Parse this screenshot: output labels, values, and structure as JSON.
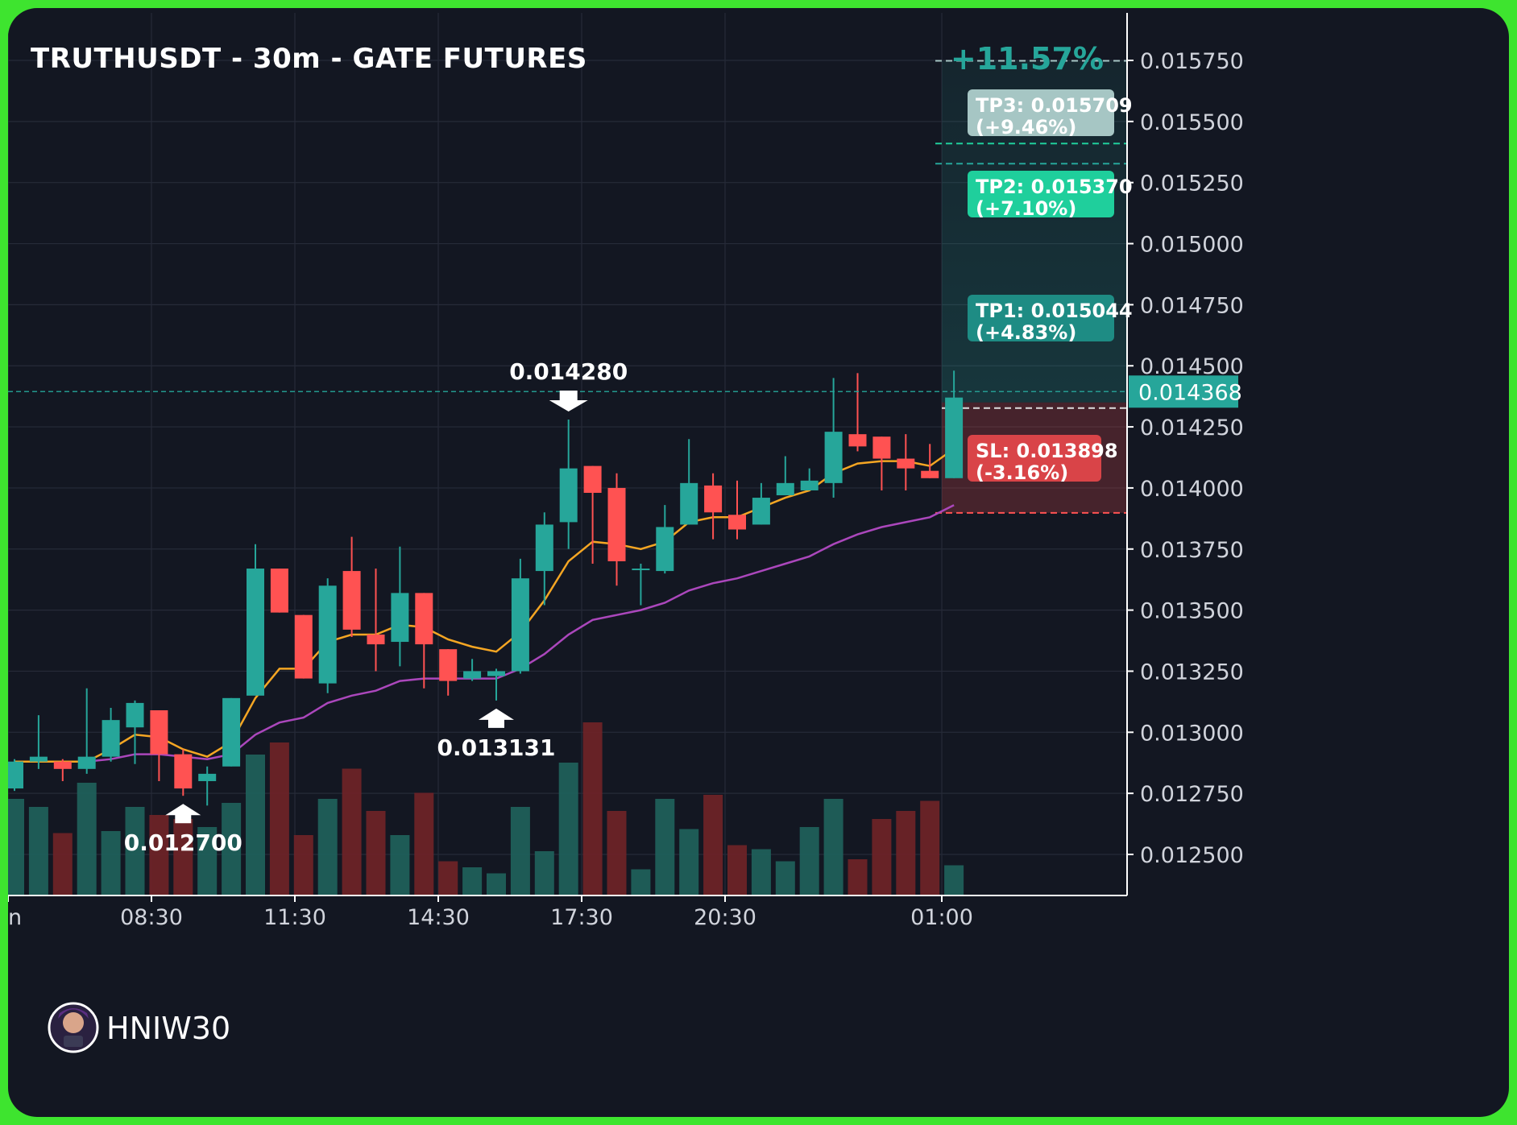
{
  "colors": {
    "background": "#131722",
    "frame": "#3ee42f",
    "up": "#26a69a",
    "down": "#ff5252",
    "ema_fast": "#f5a623",
    "ema_slow": "#ab47bc",
    "tp1_box": "#1e8c84",
    "tp2_box": "#1fcf9c",
    "tp3_box": "#a6c6c4",
    "sl_box": "#d94448"
  },
  "chart_data": {
    "type": "candlestick",
    "title": "TRUTHUSDT - 30m - GATE FUTURES",
    "performance_label": "+11.57%",
    "y_ticks": [
      "0.015750",
      "0.015500",
      "0.015250",
      "0.015000",
      "0.014750",
      "0.014500",
      "0.014250",
      "0.014000",
      "0.013750",
      "0.013500",
      "0.013250",
      "0.013000",
      "0.012750",
      "0.012500"
    ],
    "y_tick_values": [
      0.01575,
      0.0155,
      0.01525,
      0.015,
      0.01475,
      0.0145,
      0.01425,
      0.014,
      0.01375,
      0.0135,
      0.01325,
      0.013,
      0.01275,
      0.0125
    ],
    "x_ticks": [
      "n",
      "08:30",
      "11:30",
      "14:30",
      "17:30",
      "20:30",
      "01:00"
    ],
    "current_price": "0.014368",
    "candles": [
      {
        "o": 0.01277,
        "h": 0.01289,
        "l": 0.01276,
        "c": 0.01288
      },
      {
        "o": 0.01288,
        "h": 0.01307,
        "l": 0.01285,
        "c": 0.0129
      },
      {
        "o": 0.01288,
        "h": 0.01289,
        "l": 0.0128,
        "c": 0.01285
      },
      {
        "o": 0.01285,
        "h": 0.01318,
        "l": 0.01283,
        "c": 0.0129
      },
      {
        "o": 0.0129,
        "h": 0.0131,
        "l": 0.01288,
        "c": 0.01305
      },
      {
        "o": 0.01302,
        "h": 0.01313,
        "l": 0.01287,
        "c": 0.01312
      },
      {
        "o": 0.01309,
        "h": 0.01309,
        "l": 0.0128,
        "c": 0.01291
      },
      {
        "o": 0.01291,
        "h": 0.01293,
        "l": 0.01274,
        "c": 0.01277
      },
      {
        "o": 0.0128,
        "h": 0.01286,
        "l": 0.0127,
        "c": 0.01283
      },
      {
        "o": 0.01286,
        "h": 0.01314,
        "l": 0.01286,
        "c": 0.01314
      },
      {
        "o": 0.01315,
        "h": 0.01377,
        "l": 0.01315,
        "c": 0.01367
      },
      {
        "o": 0.01367,
        "h": 0.01367,
        "l": 0.01349,
        "c": 0.01349
      },
      {
        "o": 0.01348,
        "h": 0.01348,
        "l": 0.01322,
        "c": 0.01322
      },
      {
        "o": 0.0132,
        "h": 0.01363,
        "l": 0.01316,
        "c": 0.0136
      },
      {
        "o": 0.01366,
        "h": 0.0138,
        "l": 0.01339,
        "c": 0.01342
      },
      {
        "o": 0.0134,
        "h": 0.01367,
        "l": 0.01325,
        "c": 0.01336
      },
      {
        "o": 0.01337,
        "h": 0.01376,
        "l": 0.01327,
        "c": 0.01357
      },
      {
        "o": 0.01357,
        "h": 0.01357,
        "l": 0.01318,
        "c": 0.01336
      },
      {
        "o": 0.01334,
        "h": 0.01334,
        "l": 0.01315,
        "c": 0.01321
      },
      {
        "o": 0.01322,
        "h": 0.0133,
        "l": 0.01321,
        "c": 0.01325
      },
      {
        "o": 0.01323,
        "h": 0.01326,
        "l": 0.01313,
        "c": 0.01325
      },
      {
        "o": 0.01325,
        "h": 0.01371,
        "l": 0.01324,
        "c": 0.01363
      },
      {
        "o": 0.01366,
        "h": 0.0139,
        "l": 0.01352,
        "c": 0.01385
      },
      {
        "o": 0.01386,
        "h": 0.01428,
        "l": 0.01375,
        "c": 0.01408
      },
      {
        "o": 0.01409,
        "h": 0.01409,
        "l": 0.01369,
        "c": 0.01398
      },
      {
        "o": 0.014,
        "h": 0.01406,
        "l": 0.0136,
        "c": 0.0137
      },
      {
        "o": 0.01367,
        "h": 0.01369,
        "l": 0.01352,
        "c": 0.01367
      },
      {
        "o": 0.01366,
        "h": 0.01393,
        "l": 0.01365,
        "c": 0.01384
      },
      {
        "o": 0.01385,
        "h": 0.0142,
        "l": 0.01385,
        "c": 0.01402
      },
      {
        "o": 0.01401,
        "h": 0.01406,
        "l": 0.01379,
        "c": 0.0139
      },
      {
        "o": 0.01389,
        "h": 0.01403,
        "l": 0.01379,
        "c": 0.01383
      },
      {
        "o": 0.01385,
        "h": 0.01402,
        "l": 0.01385,
        "c": 0.01396
      },
      {
        "o": 0.01397,
        "h": 0.01413,
        "l": 0.01397,
        "c": 0.01402
      },
      {
        "o": 0.01399,
        "h": 0.01408,
        "l": 0.01399,
        "c": 0.01403
      },
      {
        "o": 0.01402,
        "h": 0.01445,
        "l": 0.01396,
        "c": 0.01423
      },
      {
        "o": 0.01422,
        "h": 0.01447,
        "l": 0.01415,
        "c": 0.01417
      },
      {
        "o": 0.01421,
        "h": 0.01421,
        "l": 0.01399,
        "c": 0.01412
      },
      {
        "o": 0.01412,
        "h": 0.01422,
        "l": 0.01399,
        "c": 0.01408
      },
      {
        "o": 0.01407,
        "h": 0.01418,
        "l": 0.01404,
        "c": 0.01404
      },
      {
        "o": 0.01404,
        "h": 0.01448,
        "l": 0.01404,
        "c": 0.01437
      }
    ],
    "volumes": [
      0.48,
      0.44,
      0.31,
      0.56,
      0.32,
      0.44,
      0.4,
      0.38,
      0.34,
      0.46,
      0.7,
      0.76,
      0.3,
      0.48,
      0.63,
      0.42,
      0.3,
      0.51,
      0.17,
      0.14,
      0.11,
      0.44,
      0.22,
      0.66,
      0.86,
      0.42,
      0.13,
      0.48,
      0.33,
      0.5,
      0.25,
      0.23,
      0.17,
      0.34,
      0.48,
      0.18,
      0.38,
      0.42,
      0.47,
      0.15
    ],
    "ema_fast": [
      0.01288,
      0.01288,
      0.01288,
      0.01288,
      0.01293,
      0.01299,
      0.01298,
      0.01293,
      0.0129,
      0.01296,
      0.01314,
      0.01326,
      0.01326,
      0.01337,
      0.0134,
      0.0134,
      0.01344,
      0.01343,
      0.01338,
      0.01335,
      0.01333,
      0.01341,
      0.01354,
      0.0137,
      0.01378,
      0.01377,
      0.01375,
      0.01378,
      0.01386,
      0.01388,
      0.01388,
      0.01392,
      0.01396,
      0.01399,
      0.01406,
      0.0141,
      0.01411,
      0.01411,
      0.01409,
      0.01416
    ],
    "ema_slow": [
      0.01288,
      0.01288,
      0.01288,
      0.01288,
      0.01289,
      0.01291,
      0.01291,
      0.0129,
      0.01289,
      0.01291,
      0.01299,
      0.01304,
      0.01306,
      0.01312,
      0.01315,
      0.01317,
      0.01321,
      0.01322,
      0.01322,
      0.01322,
      0.01322,
      0.01326,
      0.01332,
      0.0134,
      0.01346,
      0.01348,
      0.0135,
      0.01353,
      0.01358,
      0.01361,
      0.01363,
      0.01366,
      0.01369,
      0.01372,
      0.01377,
      0.01381,
      0.01384,
      0.01386,
      0.01388,
      0.01393
    ],
    "annotations": [
      {
        "label": "0.012700",
        "direction": "up",
        "candle": 7
      },
      {
        "label": "0.013131",
        "direction": "up",
        "candle": 20
      },
      {
        "label": "0.014280",
        "direction": "down",
        "candle": 23
      }
    ],
    "targets": [
      {
        "name": "TP1",
        "label": "TP1: 0.015044",
        "pct": "(+4.83%)",
        "price": 0.015044
      },
      {
        "name": "TP2",
        "label": "TP2: 0.015370",
        "pct": "(+7.10%)",
        "price": 0.01537
      },
      {
        "name": "TP3",
        "label": "TP3: 0.015709",
        "pct": "(+9.46%)",
        "price": 0.015709
      }
    ],
    "stop_loss": {
      "label": "SL: 0.013898",
      "pct": "(-3.16%)",
      "price": 0.013898
    },
    "entry_price": 0.01435,
    "y_range": [
      0.0124,
      0.01595
    ],
    "grid": true
  },
  "watermark": {
    "name": "HNIW30"
  }
}
